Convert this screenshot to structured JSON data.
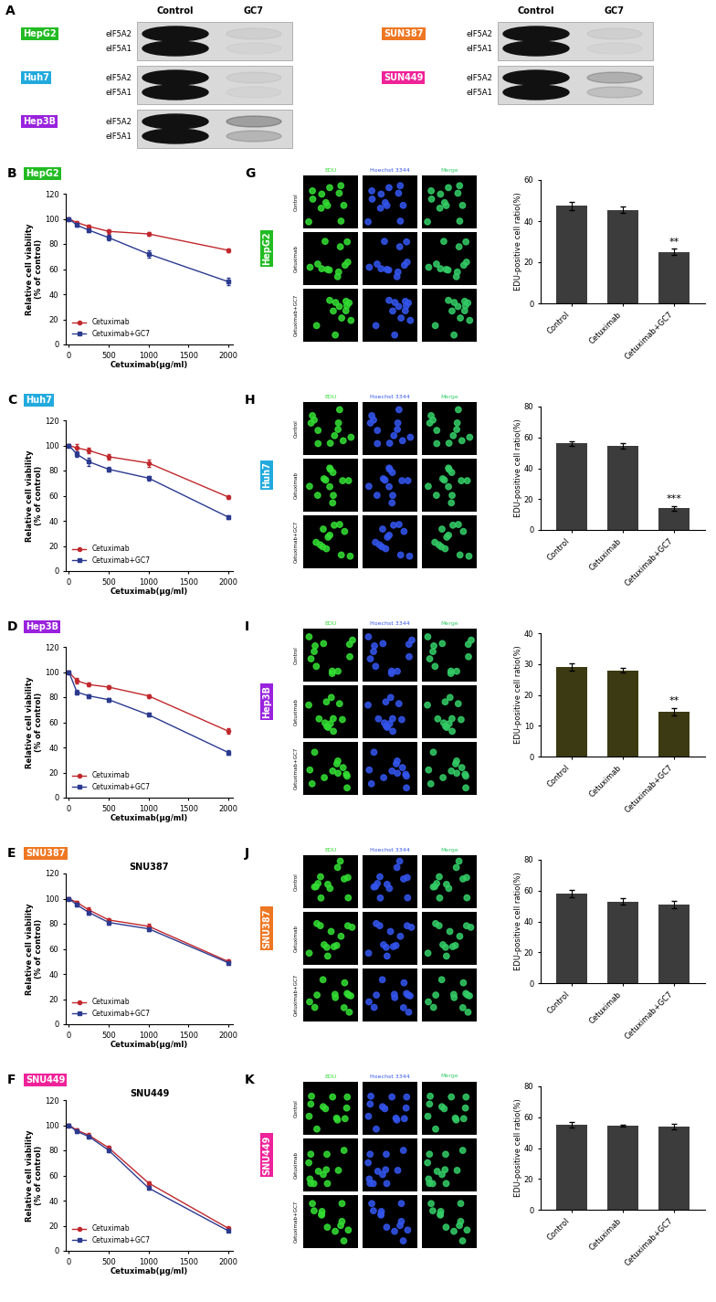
{
  "panel_A": {
    "label": "A",
    "columns": [
      "Control",
      "GC7"
    ],
    "blots": [
      {
        "cell_line": "HepG2",
        "color": "#22bb22",
        "bands": [
          "eIF5A2",
          "eIF5A1"
        ]
      },
      {
        "cell_line": "Huh7",
        "color": "#22aadd",
        "bands": [
          "eIF5A2",
          "eIF5A1"
        ]
      },
      {
        "cell_line": "Hep3B",
        "color": "#9922dd",
        "bands": [
          "eIF5A2",
          "eIF5A1"
        ]
      },
      {
        "cell_line": "SUN387",
        "color": "#ee7722",
        "bands": [
          "eIF5A2",
          "eIF5A1"
        ]
      },
      {
        "cell_line": "SUN449",
        "color": "#ee2299",
        "bands": [
          "eIF5A2",
          "eIF5A1"
        ]
      }
    ]
  },
  "chart_data": [
    {
      "panel": "B",
      "tag": "HepG2",
      "tag_color": "#22bb22",
      "type": "line",
      "xlabel": "Cetuximab(μg/ml)",
      "ylabel": "Relative cell viability\n(% of control)",
      "x": [
        0,
        100,
        250,
        500,
        1000,
        2000
      ],
      "xlim": [
        -40,
        2060
      ],
      "xticks": [
        0,
        500,
        1000,
        1500,
        2000
      ],
      "ylim": [
        0,
        120
      ],
      "yticks": [
        0,
        20,
        40,
        60,
        80,
        100,
        120
      ],
      "legend": "lower left",
      "series": [
        {
          "name": "Cetuximab",
          "color": "#c0282d",
          "marker": "circle",
          "values": [
            100,
            97,
            94,
            90,
            88,
            75
          ],
          "errors": [
            1,
            1.5,
            1.5,
            2,
            1.5,
            1.5
          ]
        },
        {
          "name": "Cetuximab+GC7",
          "color": "#2b3a8f",
          "marker": "square",
          "values": [
            100,
            95,
            91,
            85,
            72,
            50
          ],
          "errors": [
            1,
            1.5,
            1.5,
            2,
            3,
            3
          ]
        }
      ]
    },
    {
      "panel": "C",
      "tag": "Huh7",
      "tag_color": "#22aadd",
      "type": "line",
      "xlabel": "Cetuximab(μg/ml)",
      "ylabel": "Relative cell viability\n(% of control)",
      "x": [
        0,
        100,
        250,
        500,
        1000,
        2000
      ],
      "xlim": [
        -40,
        2060
      ],
      "xticks": [
        0,
        500,
        1000,
        1500,
        2000
      ],
      "ylim": [
        0,
        120
      ],
      "yticks": [
        0,
        20,
        40,
        60,
        80,
        100,
        120
      ],
      "legend": "lower left",
      "series": [
        {
          "name": "Cetuximab",
          "color": "#c0282d",
          "marker": "circle",
          "values": [
            100,
            98,
            96,
            91,
            86,
            59
          ],
          "errors": [
            1,
            3,
            2,
            2,
            3,
            1.5
          ]
        },
        {
          "name": "Cetuximab+GC7",
          "color": "#2b3a8f",
          "marker": "square",
          "values": [
            100,
            93,
            87,
            81,
            74,
            43
          ],
          "errors": [
            1,
            2,
            3,
            2,
            2,
            1.5
          ]
        }
      ]
    },
    {
      "panel": "D",
      "tag": "Hep3B",
      "tag_color": "#9922dd",
      "type": "line",
      "xlabel": "Cetuximab(μg/ml)",
      "ylabel": "Relative cell viability\n(% of control)",
      "x": [
        0,
        100,
        250,
        500,
        1000,
        2000
      ],
      "xlim": [
        -40,
        2060
      ],
      "xticks": [
        0,
        500,
        1000,
        1500,
        2000
      ],
      "ylim": [
        0,
        120
      ],
      "yticks": [
        0,
        20,
        40,
        60,
        80,
        100,
        120
      ],
      "legend": "lower left",
      "series": [
        {
          "name": "Cetuximab",
          "color": "#c0282d",
          "marker": "circle",
          "values": [
            100,
            93,
            90,
            88,
            81,
            53
          ],
          "errors": [
            1,
            2,
            1.5,
            1.5,
            1.5,
            2
          ]
        },
        {
          "name": "Cetuximab+GC7",
          "color": "#2b3a8f",
          "marker": "square",
          "values": [
            100,
            84,
            81,
            78,
            66,
            36
          ],
          "errors": [
            1,
            1.5,
            1.5,
            1.5,
            1.5,
            1.5
          ]
        }
      ]
    },
    {
      "panel": "E",
      "tag": "SNU387",
      "tag_color": "#ee7722",
      "type": "line",
      "title": "SNU387",
      "xlabel": "Cetuximab(μg/ml)",
      "ylabel": "Relative cell viability\n(% of control)",
      "x": [
        0,
        100,
        250,
        500,
        1000,
        2000
      ],
      "xlim": [
        -40,
        2060
      ],
      "xticks": [
        0,
        500,
        1000,
        1500,
        2000
      ],
      "ylim": [
        0,
        120
      ],
      "yticks": [
        0,
        20,
        40,
        60,
        80,
        100,
        120
      ],
      "legend": "lower left",
      "series": [
        {
          "name": "Cetuximab",
          "color": "#c0282d",
          "marker": "circle",
          "values": [
            100,
            97,
            91,
            83,
            78,
            50
          ],
          "errors": [
            1,
            1.5,
            2,
            1.5,
            2,
            1.5
          ]
        },
        {
          "name": "Cetuximab+GC7",
          "color": "#2b3a8f",
          "marker": "square",
          "values": [
            100,
            95,
            89,
            81,
            76,
            49
          ],
          "errors": [
            1,
            1.5,
            2,
            1.5,
            2,
            1.5
          ]
        }
      ]
    },
    {
      "panel": "F",
      "tag": "SNU449",
      "tag_color": "#ee2299",
      "type": "line",
      "title": "SNU449",
      "xlabel": "Cetuximab(μg/ml)",
      "ylabel": "Relative cell viability\n(% of control)",
      "x": [
        0,
        100,
        250,
        500,
        1000,
        2000
      ],
      "xlim": [
        -40,
        2060
      ],
      "xticks": [
        0,
        500,
        1000,
        1500,
        2000
      ],
      "ylim": [
        0,
        120
      ],
      "yticks": [
        0,
        20,
        40,
        60,
        80,
        100,
        120
      ],
      "legend": "lower left",
      "series": [
        {
          "name": "Cetuximab",
          "color": "#c0282d",
          "marker": "circle",
          "values": [
            100,
            96,
            92,
            82,
            54,
            18
          ],
          "errors": [
            1,
            1.5,
            1.5,
            1.5,
            1.5,
            1
          ]
        },
        {
          "name": "Cetuximab+GC7",
          "color": "#2b3a8f",
          "marker": "square",
          "values": [
            100,
            95,
            91,
            80,
            50,
            16
          ],
          "errors": [
            1,
            1.5,
            1.5,
            1.5,
            1.5,
            1
          ]
        }
      ]
    },
    {
      "panel": "G",
      "tag": "HepG2",
      "tag_color": "#22bb22",
      "type": "bar",
      "image_columns": [
        "EDU",
        "Hoechst 3344",
        "Merge"
      ],
      "image_rows": [
        "Control",
        "Cetuximab",
        "Cetuximab+GC7"
      ],
      "categories": [
        "Control",
        "Cetuximab",
        "Cetuximab+GC7"
      ],
      "values": [
        47.5,
        45.5,
        25
      ],
      "errors": [
        2,
        1.5,
        1.5
      ],
      "color": "#3c3c3c",
      "ylabel": "EDU-positive cell ratio(%)",
      "ylim": [
        0,
        60
      ],
      "yticks": [
        0,
        20,
        40,
        60
      ],
      "annotations": [
        {
          "category": "Cetuximab+GC7",
          "text": "**"
        }
      ]
    },
    {
      "panel": "H",
      "tag": "Huh7",
      "tag_color": "#22aadd",
      "type": "bar",
      "image_columns": [
        "EDU",
        "Hoechst 3344",
        "Merge"
      ],
      "image_rows": [
        "Control",
        "Cetuximab",
        "Cetuximab+GC7"
      ],
      "categories": [
        "Control",
        "Cetuximab",
        "Cetuximab+GC7"
      ],
      "values": [
        56,
        54.5,
        14
      ],
      "errors": [
        1.5,
        2,
        1.5
      ],
      "color": "#3c3c3c",
      "ylabel": "EDU-positive cell ratio(%)",
      "ylim": [
        0,
        80
      ],
      "yticks": [
        0,
        20,
        40,
        60,
        80
      ],
      "annotations": [
        {
          "category": "Cetuximab+GC7",
          "text": "***"
        }
      ]
    },
    {
      "panel": "I",
      "tag": "Hep3B",
      "tag_color": "#9922dd",
      "type": "bar",
      "image_columns": [
        "EDU",
        "Hoechst 3344",
        "Merge"
      ],
      "image_rows": [
        "Control",
        "Cetuximab",
        "Cetuximab+GC7"
      ],
      "categories": [
        "Control",
        "Cetuximab",
        "Cetuximab+GC7"
      ],
      "values": [
        29,
        28,
        14.5
      ],
      "errors": [
        1.2,
        0.6,
        1.3
      ],
      "color": "#3b3a12",
      "ylabel": "EDU-positive cell ratio(%)",
      "ylim": [
        0,
        40
      ],
      "yticks": [
        0,
        10,
        20,
        30,
        40
      ],
      "annotations": [
        {
          "category": "Cetuximab+GC7",
          "text": "**"
        }
      ]
    },
    {
      "panel": "J",
      "tag": "SNU387",
      "tag_color": "#ee7722",
      "type": "bar",
      "image_columns": [
        "EDU",
        "Hoechst 3344",
        "Merge"
      ],
      "image_rows": [
        "Control",
        "Cetuximab",
        "Cetuximab+GC7"
      ],
      "categories": [
        "Control",
        "Cetuximab",
        "Cetuximab+GC7"
      ],
      "values": [
        58,
        53,
        51
      ],
      "errors": [
        2.5,
        2,
        2.5
      ],
      "color": "#3c3c3c",
      "ylabel": "EDU-positive cell ratio(%)",
      "ylim": [
        0,
        80
      ],
      "yticks": [
        0,
        20,
        40,
        60,
        80
      ],
      "annotations": []
    },
    {
      "panel": "K",
      "tag": "SNU449",
      "tag_color": "#ee2299",
      "type": "bar",
      "image_columns": [
        "EDU",
        "Hoechst 3344",
        "Merge"
      ],
      "image_rows": [
        "Control",
        "Cetuximab",
        "Cetuximab+GC7"
      ],
      "categories": [
        "Control",
        "Cetuximab",
        "Cetuximab+GC7"
      ],
      "values": [
        55,
        54.5,
        54
      ],
      "errors": [
        1.8,
        0.8,
        2
      ],
      "color": "#3c3c3c",
      "ylabel": "EDU-positive cell ratio(%)",
      "ylim": [
        0,
        80
      ],
      "yticks": [
        0,
        20,
        40,
        60,
        80
      ],
      "annotations": []
    }
  ]
}
